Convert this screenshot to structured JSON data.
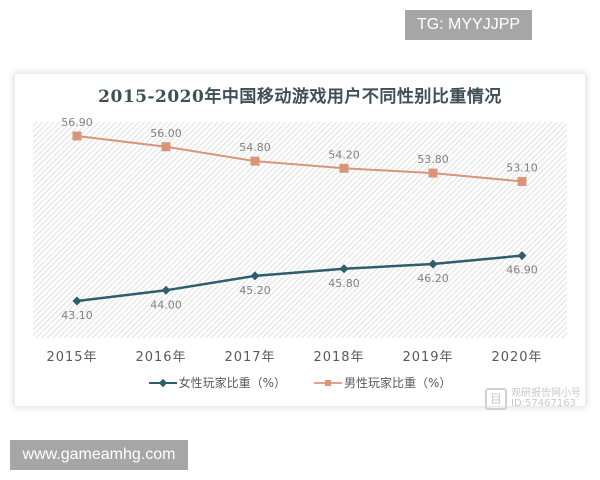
{
  "overlays": {
    "top_right_badge": "TG: MYYJJPP",
    "bottom_left_badge": "www.gameamhg.com",
    "watermark": {
      "icon": "document-icon",
      "line1": "观研报告网小号",
      "line2": "ID:57467163"
    }
  },
  "colors": {
    "female": "#2e5d6e",
    "male": "#d9957a",
    "plot_hatch": "#d8d8d8",
    "label_text": "#808080",
    "title_text": "#3e4f56"
  },
  "chart_data": {
    "type": "line",
    "title": "2015-2020年中国移动游戏用户不同性别比重情况",
    "xlabel": "",
    "ylabel": "",
    "categories": [
      "2015年",
      "2016年",
      "2017年",
      "2018年",
      "2019年",
      "2020年"
    ],
    "series": [
      {
        "name": "女性玩家比重（%）",
        "marker": "diamond",
        "color": "#2e5d6e",
        "values": [
          43.1,
          44.0,
          45.2,
          45.8,
          46.2,
          46.9
        ],
        "labels": [
          "43.10",
          "44.00",
          "45.20",
          "45.80",
          "46.20",
          "46.90"
        ]
      },
      {
        "name": "男性玩家比重（%）",
        "marker": "square",
        "color": "#d9957a",
        "values": [
          56.9,
          56.0,
          54.8,
          54.2,
          53.8,
          53.1
        ],
        "labels": [
          "56.90",
          "56.00",
          "54.80",
          "54.20",
          "53.80",
          "53.10"
        ]
      }
    ],
    "data_labels": true,
    "grid": false,
    "legend_position": "bottom",
    "y_axis_visible": false,
    "ylim": [
      42,
      58
    ]
  }
}
